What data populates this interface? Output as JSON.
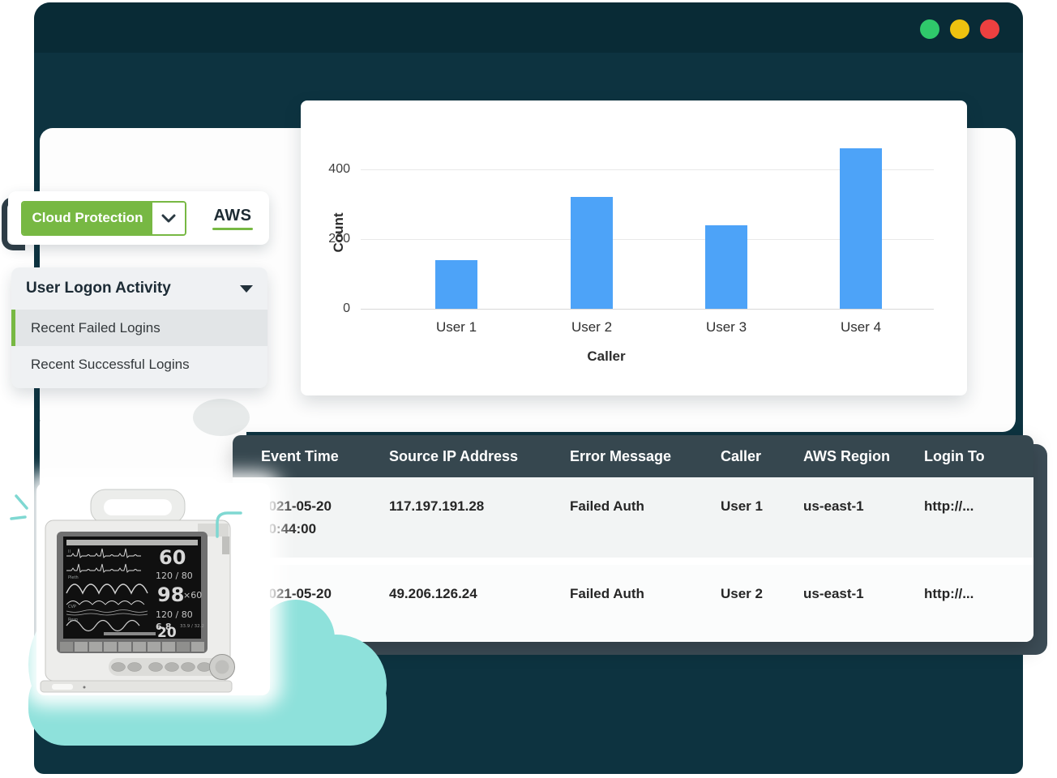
{
  "window": {
    "traffic_lights": {
      "green": "#2fc96b",
      "yellow": "#eec20f",
      "red": "#ec4040"
    }
  },
  "filter_bar": {
    "dropdown_label": "Cloud Protection",
    "provider_tab": "AWS"
  },
  "menu": {
    "title": "User Logon Activity",
    "items": [
      {
        "label": "Recent Failed Logins",
        "selected": true
      },
      {
        "label": "Recent Successful Logins",
        "selected": false
      }
    ]
  },
  "chart_data": {
    "type": "bar",
    "title": "",
    "categories": [
      "User 1",
      "User 2",
      "User 3",
      "User 4"
    ],
    "values": [
      140,
      320,
      240,
      460
    ],
    "xlabel": "Caller",
    "ylabel": "Count",
    "yticks": [
      0,
      200,
      400
    ],
    "ylim": [
      0,
      500
    ],
    "grid": true,
    "legend": false,
    "bar_color": "#4da3f8"
  },
  "table": {
    "columns": [
      "Event Time",
      "Source IP Address",
      "Error Message",
      "Caller",
      "AWS Region",
      "Login To"
    ],
    "rows": [
      [
        "2021-05-20\n10:44:00",
        "117.197.191.28",
        "Failed Auth",
        "User 1",
        "us-east-1",
        "http://..."
      ],
      [
        "2021-05-20\n10:44:00",
        "49.206.126.24",
        "Failed Auth",
        "User 2",
        "us-east-1",
        "http://..."
      ]
    ]
  },
  "monitor": {
    "hr": "60",
    "nibp": "120 / 80",
    "spo2": "98",
    "pulse_rate": "×60",
    "abp": "120 / 80",
    "cvp": "6.8",
    "temp": "33.9 / 32.2",
    "resp": "20"
  },
  "colors": {
    "accent_green": "#77b843",
    "bar_blue": "#4da3f8",
    "window_teal": "#0d3340",
    "titlebar_teal": "#092b36",
    "cloud_teal": "#8ee1db",
    "table_header_slate": "#36474f"
  }
}
